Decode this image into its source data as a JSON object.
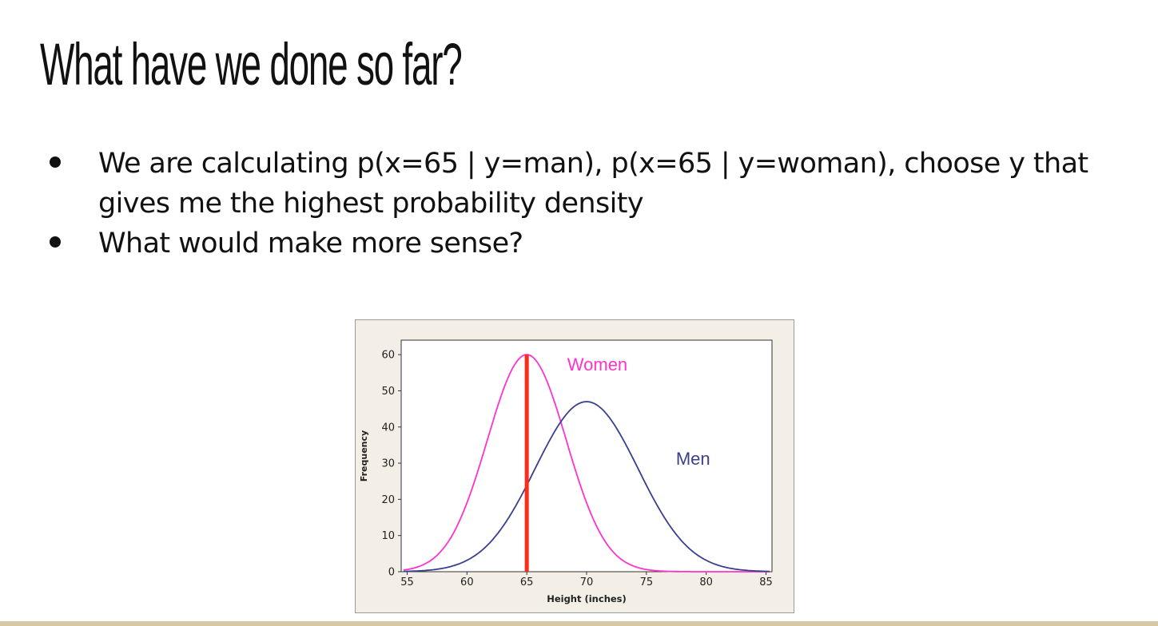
{
  "slide": {
    "title": "What have we done so far?",
    "bullets": [
      "We are calculating p(x=65 | y=man), p(x=65 | y=woman), choose y that gives me the highest probability density",
      "What would make more sense?"
    ]
  },
  "chart_data": {
    "type": "line",
    "xlabel": "Height (inches)",
    "ylabel": "Frequency",
    "xlim": [
      54.5,
      85.5
    ],
    "ylim": [
      0,
      64
    ],
    "xticks": [
      55,
      60,
      65,
      70,
      75,
      80,
      85
    ],
    "yticks": [
      0,
      10,
      20,
      30,
      40,
      50,
      60
    ],
    "grid": false,
    "series": [
      {
        "name": "Women",
        "color": "#ff33cc",
        "distribution": {
          "mean": 65,
          "sd": 3.3,
          "peak": 60
        },
        "x": [
          55,
          57,
          59,
          61,
          63,
          65,
          67,
          69,
          71,
          73,
          75,
          77
        ],
        "y": [
          0.6,
          2.8,
          11.5,
          28.5,
          50.6,
          60,
          50.6,
          28.5,
          11.5,
          2.8,
          0.6,
          0.1
        ]
      },
      {
        "name": "Men",
        "color": "#3a3f8f",
        "distribution": {
          "mean": 70,
          "sd": 4.3,
          "peak": 47
        },
        "x": [
          55,
          58,
          61,
          64,
          67,
          70,
          73,
          76,
          79,
          82,
          85
        ],
        "y": [
          0.1,
          0.9,
          5.3,
          17.9,
          37.5,
          47,
          37.5,
          17.9,
          5.3,
          0.9,
          0.1
        ]
      }
    ],
    "reference_line": {
      "x": 65,
      "color": "#ff2a1a"
    },
    "annotations": [
      {
        "text": "Women",
        "x": 70.9,
        "y": 55.6,
        "color": "#ff33cc"
      },
      {
        "text": "Men",
        "x": 78.9,
        "y": 29.6,
        "color": "#3a3f8f"
      }
    ]
  }
}
